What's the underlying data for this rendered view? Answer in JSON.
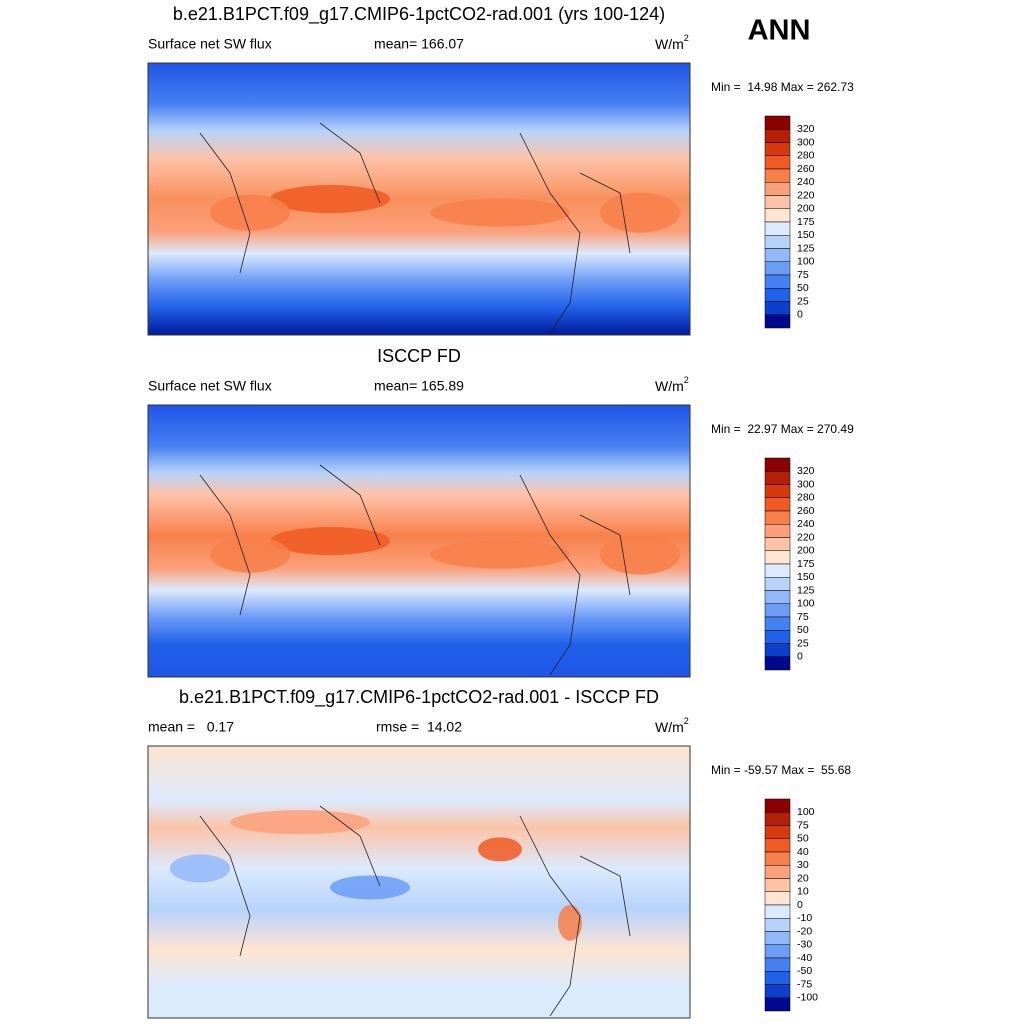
{
  "season": "ANN",
  "panels": [
    {
      "title": "b.e21.B1PCT.f09_g17.CMIP6-1pctCO2-rad.001 (yrs 100-124)",
      "left_label": "Surface net SW flux",
      "center_label": "mean= 166.07",
      "units": "W/m",
      "units_sup": "2",
      "minmax": "Min =  14.98 Max = 262.73",
      "colorbar": {
        "labels": [
          320,
          300,
          280,
          260,
          240,
          220,
          200,
          175,
          150,
          125,
          100,
          75,
          50,
          25,
          0
        ],
        "colors": [
          "#8c0000",
          "#b51f06",
          "#d63a0c",
          "#f05b22",
          "#f77f4a",
          "#fba07a",
          "#fdc3a8",
          "#fee4d2",
          "#dbeafc",
          "#b7d3fb",
          "#92b8fa",
          "#6c9cf6",
          "#4580f2",
          "#2061ea",
          "#0b3fcc",
          "#000890"
        ]
      }
    },
    {
      "title": "ISCCP FD",
      "left_label": "Surface net SW flux",
      "center_label": "mean= 165.89",
      "units": "W/m",
      "units_sup": "2",
      "minmax": "Min =  22.97 Max = 270.49",
      "colorbar": {
        "labels": [
          320,
          300,
          280,
          260,
          240,
          220,
          200,
          175,
          150,
          125,
          100,
          75,
          50,
          25,
          0
        ],
        "colors": [
          "#8c0000",
          "#b51f06",
          "#d63a0c",
          "#f05b22",
          "#f77f4a",
          "#fba07a",
          "#fdc3a8",
          "#fee4d2",
          "#dbeafc",
          "#b7d3fb",
          "#92b8fa",
          "#6c9cf6",
          "#4580f2",
          "#2061ea",
          "#0b3fcc",
          "#000890"
        ]
      }
    },
    {
      "title": "b.e21.B1PCT.f09_g17.CMIP6-1pctCO2-rad.001 - ISCCP FD",
      "left_label": "mean =   0.17",
      "center_label": "rmse =  14.02",
      "units": "W/m",
      "units_sup": "2",
      "minmax": "Min = -59.57 Max =  55.68",
      "colorbar": {
        "labels": [
          100,
          75,
          50,
          40,
          30,
          20,
          10,
          0,
          -10,
          -20,
          -30,
          -40,
          -50,
          -75,
          -100
        ],
        "colors": [
          "#8c0000",
          "#b51f06",
          "#d63a0c",
          "#f05b22",
          "#f77f4a",
          "#fba07a",
          "#fdc3a8",
          "#fee4d2",
          "#dbeafc",
          "#b7d3fb",
          "#92b8fa",
          "#6c9cf6",
          "#4580f2",
          "#2061ea",
          "#0b3fcc",
          "#000890"
        ]
      }
    }
  ]
}
